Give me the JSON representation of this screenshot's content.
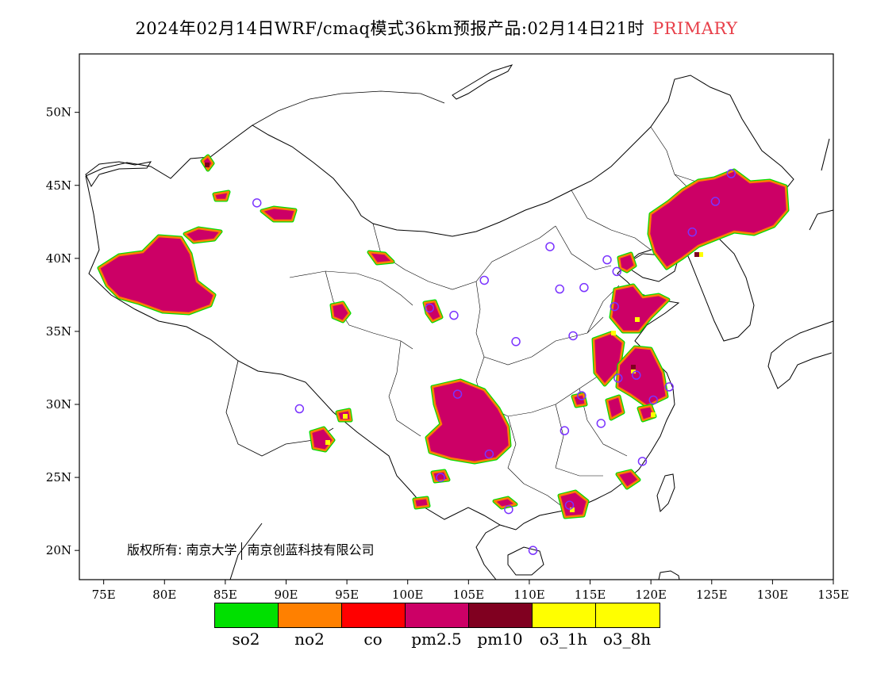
{
  "title": {
    "main": "2024年02月14日WRF/cmaq模式36km预报产品:02月14日21时",
    "highlight": "PRIMARY",
    "highlight_color": "#e8404a"
  },
  "axes": {
    "x_ticks": [
      "75E",
      "80E",
      "85E",
      "90E",
      "95E",
      "100E",
      "105E",
      "110E",
      "115E",
      "120E",
      "125E",
      "130E",
      "135E"
    ],
    "y_ticks": [
      "50N",
      "45N",
      "40N",
      "35N",
      "30N",
      "25N",
      "20N"
    ],
    "lon_range": [
      73,
      135
    ],
    "lat_range": [
      18,
      54
    ]
  },
  "copyright": {
    "part1": "版权所有: 南京大学",
    "part2": "南京创蓝科技有限公司"
  },
  "legend": [
    {
      "label": "so2",
      "color": "#00e000"
    },
    {
      "label": "no2",
      "color": "#ff8000"
    },
    {
      "label": "co",
      "color": "#ff0000"
    },
    {
      "label": "pm2.5",
      "color": "#cc0066"
    },
    {
      "label": "pm10",
      "color": "#800020"
    },
    {
      "label": "o3_1h",
      "color": "#ffff00"
    },
    {
      "label": "o3_8h",
      "color": "#ffff00"
    }
  ],
  "stations": [
    [
      87.6,
      43.8
    ],
    [
      91.1,
      29.7
    ],
    [
      101.8,
      36.6
    ],
    [
      103.8,
      36.1
    ],
    [
      106.3,
      38.5
    ],
    [
      111.7,
      40.8
    ],
    [
      112.5,
      37.9
    ],
    [
      114.5,
      38.0
    ],
    [
      116.4,
      39.9
    ],
    [
      117.2,
      39.1
    ],
    [
      113.6,
      34.7
    ],
    [
      117.0,
      36.7
    ],
    [
      108.9,
      34.3
    ],
    [
      104.1,
      30.7
    ],
    [
      106.7,
      26.6
    ],
    [
      102.7,
      25.0
    ],
    [
      114.3,
      30.6
    ],
    [
      112.9,
      28.2
    ],
    [
      117.3,
      31.8
    ],
    [
      118.8,
      32.0
    ],
    [
      120.2,
      30.3
    ],
    [
      121.5,
      31.2
    ],
    [
      119.3,
      26.1
    ],
    [
      113.3,
      23.1
    ],
    [
      108.3,
      22.8
    ],
    [
      110.3,
      20.0
    ],
    [
      115.9,
      28.7
    ],
    [
      123.4,
      41.8
    ],
    [
      125.3,
      43.9
    ],
    [
      126.6,
      45.8
    ]
  ]
}
